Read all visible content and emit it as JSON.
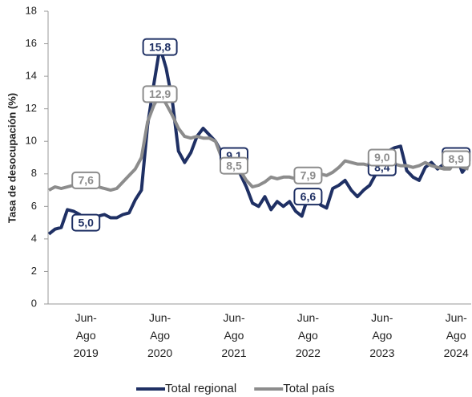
{
  "chart_data": {
    "type": "line",
    "y_label": "Tasa de desocupación (%)",
    "categories": [
      null,
      null,
      null,
      null,
      null,
      null,
      "Jun-Ago 2019",
      null,
      null,
      null,
      null,
      null,
      null,
      null,
      null,
      null,
      null,
      null,
      "Jun-Ago 2020",
      null,
      null,
      null,
      null,
      null,
      null,
      null,
      null,
      null,
      null,
      null,
      "Jun-Ago 2021",
      null,
      null,
      null,
      null,
      null,
      null,
      null,
      null,
      null,
      null,
      null,
      "Jun-Ago 2022",
      null,
      null,
      null,
      null,
      null,
      null,
      null,
      null,
      null,
      null,
      null,
      "Jun-Ago 2023",
      null,
      null,
      null,
      null,
      null,
      null,
      null,
      null,
      null,
      null,
      null,
      "Jun-Ago 2024",
      null,
      null
    ],
    "ylim": [
      0,
      18
    ],
    "yticks": [
      0,
      2,
      4,
      6,
      8,
      10,
      12,
      14,
      16,
      18
    ],
    "legend": "bottom",
    "series": [
      {
        "name": "Total regional",
        "color": "#1f3064",
        "values": [
          4.3,
          4.6,
          4.7,
          5.8,
          5.7,
          5.5,
          5.0,
          5.4,
          5.4,
          5.5,
          5.3,
          5.3,
          5.5,
          5.6,
          6.4,
          7.0,
          11.0,
          13.5,
          15.8,
          14.5,
          12.5,
          9.4,
          8.7,
          9.3,
          10.3,
          10.8,
          10.4,
          10.0,
          9.3,
          9.0,
          9.1,
          8.0,
          7.2,
          6.2,
          6.0,
          6.6,
          5.8,
          6.3,
          6.0,
          6.3,
          5.7,
          5.4,
          6.6,
          6.9,
          6.1,
          5.9,
          7.1,
          7.3,
          7.6,
          7.0,
          6.6,
          7.0,
          7.3,
          8.0,
          8.4,
          9.4,
          9.6,
          9.7,
          8.2,
          7.8,
          7.6,
          8.4,
          8.7,
          8.3,
          8.6,
          8.6,
          9.1,
          8.1,
          8.6
        ],
        "value_labels": [
          null,
          null,
          null,
          null,
          null,
          null,
          "5,0",
          null,
          null,
          null,
          null,
          null,
          null,
          null,
          null,
          null,
          null,
          null,
          "15,8",
          null,
          null,
          null,
          null,
          null,
          null,
          null,
          null,
          null,
          null,
          null,
          "9,1",
          null,
          null,
          null,
          null,
          null,
          null,
          null,
          null,
          null,
          null,
          null,
          "6,6",
          null,
          null,
          null,
          null,
          null,
          null,
          null,
          null,
          null,
          null,
          null,
          "8,4",
          null,
          null,
          null,
          null,
          null,
          null,
          null,
          null,
          null,
          null,
          null,
          "9,1",
          null,
          null
        ]
      },
      {
        "name": "Total país",
        "color": "#8c8c8c",
        "values": [
          7.0,
          7.2,
          7.1,
          7.2,
          7.3,
          7.4,
          7.6,
          7.3,
          7.2,
          7.1,
          7.0,
          7.1,
          7.5,
          7.9,
          8.3,
          9.0,
          11.2,
          12.2,
          12.9,
          12.3,
          11.6,
          10.8,
          10.3,
          10.2,
          10.3,
          10.2,
          10.2,
          10.0,
          9.0,
          8.6,
          8.5,
          8.2,
          7.6,
          7.2,
          7.3,
          7.5,
          7.8,
          7.7,
          7.8,
          7.8,
          7.7,
          7.8,
          7.9,
          7.8,
          8.0,
          7.9,
          8.1,
          8.4,
          8.8,
          8.7,
          8.6,
          8.6,
          8.5,
          8.6,
          9.0,
          8.8,
          8.6,
          8.5,
          8.5,
          8.4,
          8.5,
          8.7,
          8.5,
          8.4,
          8.3,
          8.3,
          8.9,
          8.4,
          8.3
        ],
        "value_labels": [
          null,
          null,
          null,
          null,
          null,
          null,
          "7,6",
          null,
          null,
          null,
          null,
          null,
          null,
          null,
          null,
          null,
          null,
          null,
          "12,9",
          null,
          null,
          null,
          null,
          null,
          null,
          null,
          null,
          null,
          null,
          null,
          "8,5",
          null,
          null,
          null,
          null,
          null,
          null,
          null,
          null,
          null,
          null,
          null,
          "7,9",
          null,
          null,
          null,
          null,
          null,
          null,
          null,
          null,
          null,
          null,
          null,
          "9,0",
          null,
          null,
          null,
          null,
          null,
          null,
          null,
          null,
          null,
          null,
          null,
          "8,9",
          null,
          null
        ]
      }
    ]
  }
}
